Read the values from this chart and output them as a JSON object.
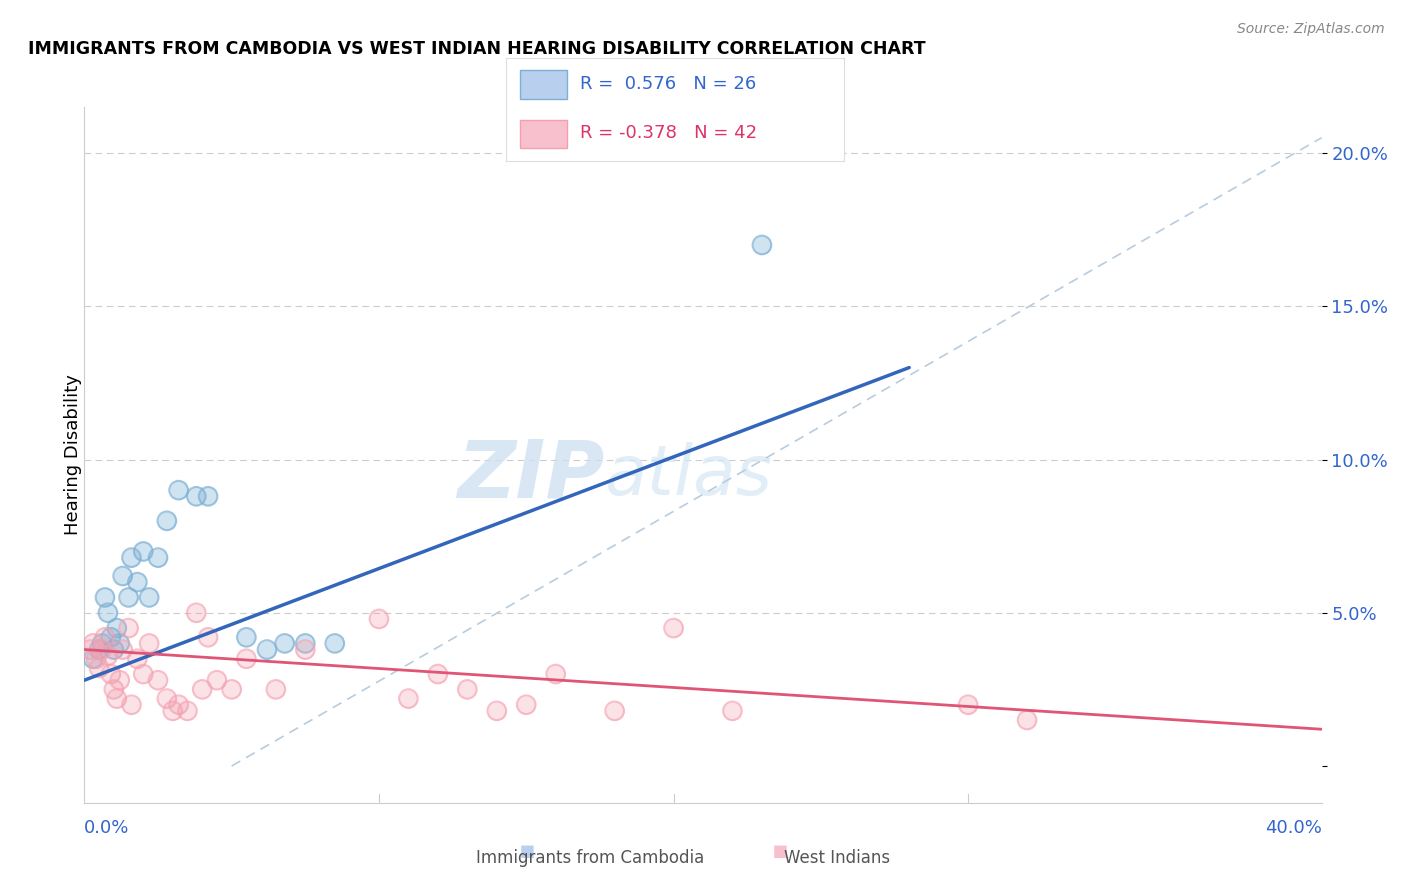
{
  "title": "IMMIGRANTS FROM CAMBODIA VS WEST INDIAN HEARING DISABILITY CORRELATION CHART",
  "source": "Source: ZipAtlas.com",
  "ylabel": "Hearing Disability",
  "y_ticks": [
    0.0,
    0.05,
    0.1,
    0.15,
    0.2
  ],
  "y_tick_labels": [
    "",
    "5.0%",
    "10.0%",
    "15.0%",
    "20.0%"
  ],
  "xlim": [
    0.0,
    0.42
  ],
  "ylim": [
    -0.012,
    0.215
  ],
  "legend_blue_label": "R =  0.576   N = 26",
  "legend_pink_label": "R = -0.378   N = 42",
  "legend_entry1": "Immigrants from Cambodia",
  "legend_entry2": "West Indians",
  "blue_color": "#7BAFD4",
  "pink_color": "#F4A0B0",
  "blue_line_color": "#3366BB",
  "pink_line_color": "#E05575",
  "diag_line_color": "#B8CCDD",
  "watermark_zip": "ZIP",
  "watermark_atlas": "atlas",
  "blue_scatter_x": [
    0.003,
    0.005,
    0.006,
    0.007,
    0.008,
    0.009,
    0.01,
    0.011,
    0.012,
    0.013,
    0.015,
    0.016,
    0.018,
    0.02,
    0.022,
    0.025,
    0.028,
    0.032,
    0.038,
    0.042,
    0.055,
    0.062,
    0.068,
    0.075,
    0.085,
    0.23
  ],
  "blue_scatter_y": [
    0.035,
    0.038,
    0.04,
    0.055,
    0.05,
    0.042,
    0.038,
    0.045,
    0.04,
    0.062,
    0.055,
    0.068,
    0.06,
    0.07,
    0.055,
    0.068,
    0.08,
    0.09,
    0.088,
    0.088,
    0.042,
    0.038,
    0.04,
    0.04,
    0.04,
    0.17
  ],
  "pink_scatter_x": [
    0.002,
    0.003,
    0.004,
    0.005,
    0.006,
    0.007,
    0.008,
    0.009,
    0.01,
    0.011,
    0.012,
    0.013,
    0.015,
    0.016,
    0.018,
    0.02,
    0.022,
    0.025,
    0.028,
    0.03,
    0.032,
    0.035,
    0.038,
    0.04,
    0.042,
    0.045,
    0.05,
    0.055,
    0.065,
    0.075,
    0.1,
    0.11,
    0.12,
    0.13,
    0.14,
    0.15,
    0.16,
    0.18,
    0.2,
    0.22,
    0.3,
    0.32
  ],
  "pink_scatter_y": [
    0.038,
    0.04,
    0.035,
    0.032,
    0.038,
    0.042,
    0.036,
    0.03,
    0.025,
    0.022,
    0.028,
    0.038,
    0.045,
    0.02,
    0.035,
    0.03,
    0.04,
    0.028,
    0.022,
    0.018,
    0.02,
    0.018,
    0.05,
    0.025,
    0.042,
    0.028,
    0.025,
    0.035,
    0.025,
    0.038,
    0.048,
    0.022,
    0.03,
    0.025,
    0.018,
    0.02,
    0.03,
    0.018,
    0.045,
    0.018,
    0.02,
    0.015
  ],
  "blue_line_x": [
    0.0,
    0.28
  ],
  "blue_line_y": [
    0.028,
    0.13
  ],
  "pink_line_x": [
    0.0,
    0.42
  ],
  "pink_line_y": [
    0.038,
    0.012
  ],
  "diag_line_x": [
    0.05,
    0.42
  ],
  "diag_line_y": [
    0.0,
    0.205
  ]
}
